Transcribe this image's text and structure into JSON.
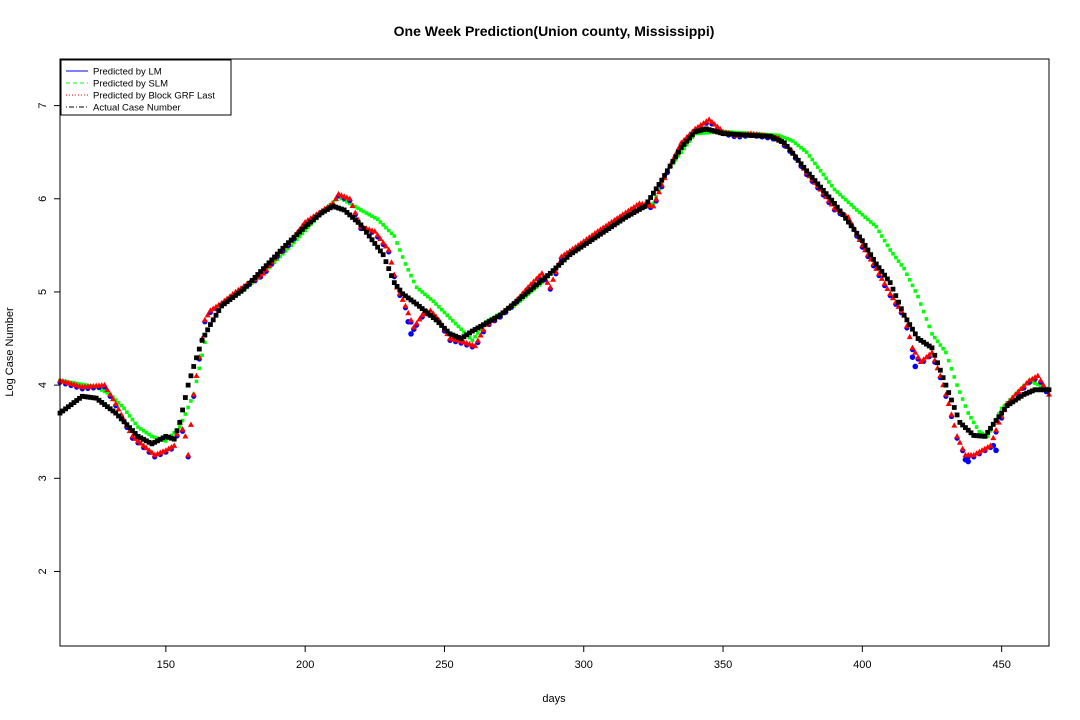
{
  "chart_data": {
    "type": "line",
    "title": "One Week Prediction(Union county, Mississippi)",
    "xlabel": "days",
    "ylabel": "Log Case Number",
    "xlim": [
      112,
      467
    ],
    "ylim": [
      1.2,
      7.5
    ],
    "x_ticks": [
      150,
      200,
      250,
      300,
      350,
      400,
      450
    ],
    "y_ticks": [
      2,
      3,
      4,
      5,
      6,
      7
    ],
    "legend_position": "top-left",
    "legend": [
      {
        "label": "Predicted by LM",
        "color": "#0000ff",
        "dash": "solid"
      },
      {
        "label": "Predicted by SLM",
        "color": "#00ff00",
        "dash": "dashed"
      },
      {
        "label": "Predicted by Block GRF Last",
        "color": "#ff0000",
        "dash": "dotted"
      },
      {
        "label": "Actual Case Number",
        "color": "#000000",
        "dash": "dotdash"
      }
    ],
    "actual_anchors": [
      [
        112,
        3.7
      ],
      [
        120,
        3.88
      ],
      [
        125,
        3.86
      ],
      [
        132,
        3.7
      ],
      [
        140,
        3.45
      ],
      [
        145,
        3.37
      ],
      [
        150,
        3.45
      ],
      [
        153,
        3.42
      ],
      [
        155,
        3.6
      ],
      [
        158,
        4.0
      ],
      [
        160,
        4.2
      ],
      [
        163,
        4.48
      ],
      [
        166,
        4.65
      ],
      [
        170,
        4.85
      ],
      [
        178,
        5.03
      ],
      [
        185,
        5.25
      ],
      [
        193,
        5.5
      ],
      [
        200,
        5.7
      ],
      [
        206,
        5.85
      ],
      [
        210,
        5.92
      ],
      [
        214,
        5.88
      ],
      [
        220,
        5.72
      ],
      [
        228,
        5.4
      ],
      [
        232,
        5.1
      ],
      [
        235,
        4.98
      ],
      [
        240,
        4.87
      ],
      [
        247,
        4.7
      ],
      [
        252,
        4.55
      ],
      [
        256,
        4.5
      ],
      [
        260,
        4.58
      ],
      [
        270,
        4.75
      ],
      [
        280,
        5.0
      ],
      [
        288,
        5.2
      ],
      [
        295,
        5.4
      ],
      [
        305,
        5.6
      ],
      [
        315,
        5.8
      ],
      [
        322,
        5.92
      ],
      [
        328,
        6.2
      ],
      [
        335,
        6.55
      ],
      [
        340,
        6.72
      ],
      [
        344,
        6.75
      ],
      [
        350,
        6.7
      ],
      [
        360,
        6.68
      ],
      [
        367,
        6.67
      ],
      [
        372,
        6.6
      ],
      [
        380,
        6.3
      ],
      [
        390,
        5.95
      ],
      [
        400,
        5.55
      ],
      [
        405,
        5.3
      ],
      [
        410,
        5.1
      ],
      [
        415,
        4.75
      ],
      [
        420,
        4.5
      ],
      [
        425,
        4.4
      ],
      [
        430,
        4.0
      ],
      [
        435,
        3.6
      ],
      [
        440,
        3.46
      ],
      [
        444,
        3.45
      ],
      [
        447,
        3.58
      ],
      [
        452,
        3.78
      ],
      [
        458,
        3.9
      ],
      [
        462,
        3.95
      ]
    ],
    "prediction_anchors": [
      [
        112,
        4.05
      ],
      [
        120,
        3.98
      ],
      [
        128,
        4.0
      ],
      [
        132,
        3.8
      ],
      [
        138,
        3.45
      ],
      [
        142,
        3.35
      ],
      [
        146,
        3.25
      ],
      [
        150,
        3.3
      ],
      [
        153,
        3.35
      ],
      [
        155,
        3.6
      ],
      [
        157,
        3.45
      ],
      [
        158,
        3.25
      ],
      [
        160,
        3.9
      ],
      [
        162,
        4.3
      ],
      [
        164,
        4.7
      ],
      [
        166,
        4.8
      ],
      [
        170,
        4.88
      ],
      [
        175,
        5.0
      ],
      [
        180,
        5.1
      ],
      [
        185,
        5.2
      ],
      [
        190,
        5.4
      ],
      [
        195,
        5.55
      ],
      [
        200,
        5.75
      ],
      [
        205,
        5.85
      ],
      [
        210,
        5.95
      ],
      [
        212,
        6.05
      ],
      [
        216,
        6.0
      ],
      [
        220,
        5.7
      ],
      [
        225,
        5.65
      ],
      [
        230,
        5.45
      ],
      [
        233,
        5.05
      ],
      [
        236,
        4.85
      ],
      [
        239,
        4.62
      ],
      [
        242,
        4.75
      ],
      [
        245,
        4.8
      ],
      [
        248,
        4.7
      ],
      [
        252,
        4.5
      ],
      [
        255,
        4.48
      ],
      [
        258,
        4.45
      ],
      [
        261,
        4.42
      ],
      [
        265,
        4.65
      ],
      [
        270,
        4.75
      ],
      [
        275,
        4.88
      ],
      [
        280,
        5.05
      ],
      [
        285,
        5.2
      ],
      [
        288,
        5.05
      ],
      [
        292,
        5.38
      ],
      [
        298,
        5.5
      ],
      [
        305,
        5.65
      ],
      [
        310,
        5.75
      ],
      [
        315,
        5.85
      ],
      [
        320,
        5.95
      ],
      [
        325,
        5.92
      ],
      [
        330,
        6.3
      ],
      [
        335,
        6.6
      ],
      [
        340,
        6.75
      ],
      [
        345,
        6.85
      ],
      [
        350,
        6.72
      ],
      [
        355,
        6.68
      ],
      [
        360,
        6.7
      ],
      [
        365,
        6.68
      ],
      [
        370,
        6.65
      ],
      [
        375,
        6.5
      ],
      [
        380,
        6.28
      ],
      [
        385,
        6.1
      ],
      [
        390,
        5.9
      ],
      [
        395,
        5.8
      ],
      [
        400,
        5.5
      ],
      [
        405,
        5.25
      ],
      [
        410,
        4.98
      ],
      [
        415,
        4.75
      ],
      [
        418,
        4.4
      ],
      [
        421,
        4.25
      ],
      [
        425,
        4.35
      ],
      [
        428,
        4.1
      ],
      [
        431,
        3.8
      ],
      [
        434,
        3.45
      ],
      [
        437,
        3.25
      ],
      [
        440,
        3.25
      ],
      [
        443,
        3.3
      ],
      [
        446,
        3.35
      ],
      [
        449,
        3.6
      ],
      [
        452,
        3.8
      ],
      [
        455,
        3.9
      ],
      [
        460,
        4.05
      ],
      [
        463,
        4.1
      ],
      [
        467,
        3.9
      ]
    ],
    "slm_anchors": [
      [
        112,
        4.05
      ],
      [
        125,
        3.98
      ],
      [
        130,
        3.9
      ],
      [
        135,
        3.75
      ],
      [
        140,
        3.55
      ],
      [
        145,
        3.45
      ],
      [
        150,
        3.4
      ],
      [
        155,
        3.55
      ],
      [
        160,
        3.9
      ],
      [
        165,
        4.6
      ],
      [
        170,
        4.85
      ],
      [
        178,
        5.02
      ],
      [
        185,
        5.2
      ],
      [
        195,
        5.5
      ],
      [
        205,
        5.82
      ],
      [
        212,
        6.02
      ],
      [
        216,
        5.95
      ],
      [
        220,
        5.88
      ],
      [
        226,
        5.78
      ],
      [
        232,
        5.6
      ],
      [
        236,
        5.3
      ],
      [
        240,
        5.05
      ],
      [
        246,
        4.9
      ],
      [
        252,
        4.72
      ],
      [
        256,
        4.6
      ],
      [
        260,
        4.48
      ],
      [
        265,
        4.68
      ],
      [
        275,
        4.85
      ],
      [
        285,
        5.1
      ],
      [
        295,
        5.4
      ],
      [
        305,
        5.6
      ],
      [
        315,
        5.82
      ],
      [
        325,
        5.95
      ],
      [
        330,
        6.3
      ],
      [
        340,
        6.7
      ],
      [
        350,
        6.72
      ],
      [
        360,
        6.7
      ],
      [
        370,
        6.68
      ],
      [
        375,
        6.62
      ],
      [
        380,
        6.5
      ],
      [
        385,
        6.3
      ],
      [
        390,
        6.1
      ],
      [
        398,
        5.88
      ],
      [
        405,
        5.7
      ],
      [
        410,
        5.45
      ],
      [
        415,
        5.25
      ],
      [
        420,
        4.95
      ],
      [
        425,
        4.55
      ],
      [
        430,
        4.35
      ],
      [
        434,
        4.0
      ],
      [
        438,
        3.7
      ],
      [
        442,
        3.5
      ],
      [
        445,
        3.45
      ],
      [
        450,
        3.75
      ],
      [
        455,
        3.9
      ],
      [
        460,
        4.05
      ],
      [
        467,
        3.95
      ]
    ],
    "lm_outliers": [
      [
        237,
        4.68
      ],
      [
        238,
        4.55
      ],
      [
        239,
        4.6
      ],
      [
        418,
        4.3
      ],
      [
        419,
        4.2
      ],
      [
        437,
        3.2
      ],
      [
        438,
        3.18
      ],
      [
        447,
        3.35
      ],
      [
        448,
        3.3
      ]
    ]
  }
}
